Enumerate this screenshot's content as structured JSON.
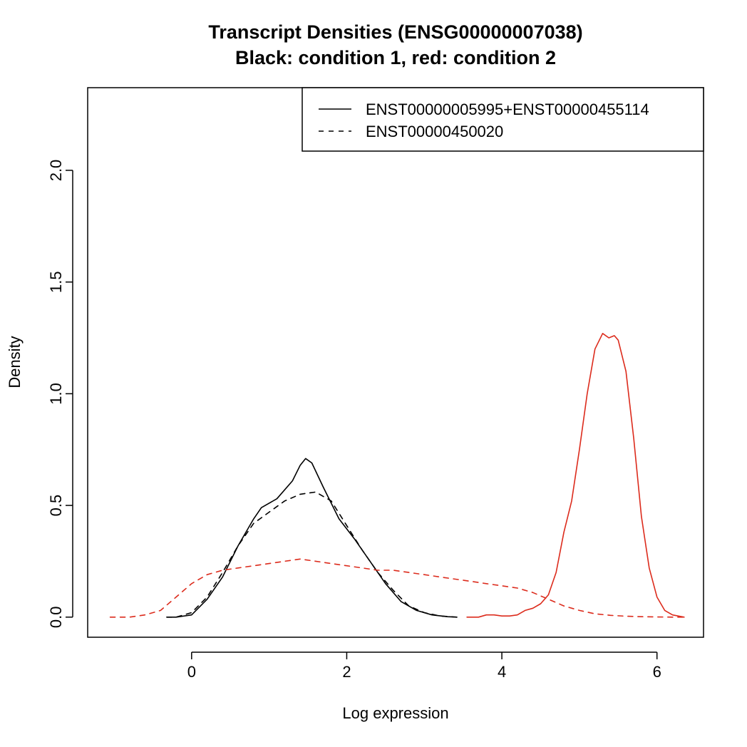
{
  "chart_data": {
    "type": "line",
    "title": "Transcript Densities (ENSG00000007038)",
    "subtitle": "Black: condition 1, red: condition 2",
    "xlabel": "Log expression",
    "ylabel": "Density",
    "xlim": [
      -1.34,
      6.6
    ],
    "ylim": [
      -0.09,
      2.37
    ],
    "x_ticks": [
      0,
      2,
      4,
      6
    ],
    "x_tick_labels": [
      "0",
      "2",
      "4",
      "6"
    ],
    "y_ticks": [
      0.0,
      0.5,
      1.0,
      1.5,
      2.0
    ],
    "y_tick_labels": [
      "0.0",
      "0.5",
      "1.0",
      "1.5",
      "2.0"
    ],
    "grid": false,
    "legend_position": "top-right",
    "legend": [
      {
        "label": "ENST00000005995+ENST00000455114",
        "line_style": "solid"
      },
      {
        "label": "ENST00000450020",
        "line_style": "dashed"
      }
    ],
    "series": [
      {
        "name": "ENST00000005995+ENST00000455114",
        "condition": "condition 1",
        "color": "#000000",
        "line_style": "solid",
        "x": [
          -0.32,
          -0.2,
          0.0,
          0.2,
          0.4,
          0.6,
          0.8,
          0.9,
          1.1,
          1.3,
          1.4,
          1.47,
          1.55,
          1.7,
          1.9,
          2.1,
          2.3,
          2.5,
          2.7,
          2.9,
          3.1,
          3.3,
          3.42
        ],
        "y": [
          0.0,
          0.0,
          0.01,
          0.08,
          0.18,
          0.32,
          0.44,
          0.49,
          0.53,
          0.61,
          0.68,
          0.71,
          0.69,
          0.58,
          0.44,
          0.35,
          0.25,
          0.15,
          0.07,
          0.03,
          0.01,
          0.002,
          0.0
        ]
      },
      {
        "name": "ENST00000450020",
        "condition": "condition 1",
        "color": "#000000",
        "line_style": "dashed",
        "x": [
          -0.32,
          -0.2,
          0.0,
          0.2,
          0.4,
          0.6,
          0.8,
          1.0,
          1.2,
          1.4,
          1.6,
          1.8,
          2.0,
          2.2,
          2.4,
          2.6,
          2.8,
          3.0,
          3.2,
          3.42
        ],
        "y": [
          0.0,
          0.0,
          0.02,
          0.09,
          0.2,
          0.32,
          0.42,
          0.47,
          0.52,
          0.55,
          0.56,
          0.52,
          0.41,
          0.3,
          0.2,
          0.12,
          0.05,
          0.02,
          0.005,
          0.0
        ]
      },
      {
        "name": "ENST00000005995+ENST00000455114",
        "condition": "condition 2",
        "color": "#dc2b1c",
        "line_style": "solid",
        "x": [
          3.55,
          3.7,
          3.8,
          3.9,
          4.0,
          4.1,
          4.2,
          4.3,
          4.4,
          4.5,
          4.6,
          4.7,
          4.8,
          4.9,
          5.0,
          5.1,
          5.2,
          5.3,
          5.38,
          5.45,
          5.5,
          5.6,
          5.7,
          5.8,
          5.9,
          6.0,
          6.1,
          6.2,
          6.35
        ],
        "y": [
          0.0,
          0.0,
          0.01,
          0.01,
          0.005,
          0.005,
          0.01,
          0.03,
          0.04,
          0.06,
          0.1,
          0.2,
          0.38,
          0.52,
          0.75,
          1.0,
          1.2,
          1.27,
          1.25,
          1.26,
          1.24,
          1.1,
          0.8,
          0.45,
          0.22,
          0.09,
          0.03,
          0.01,
          0.0
        ]
      },
      {
        "name": "ENST00000450020",
        "condition": "condition 2",
        "color": "#dc2b1c",
        "line_style": "dashed",
        "x": [
          -1.05,
          -0.8,
          -0.6,
          -0.4,
          -0.2,
          0.0,
          0.2,
          0.4,
          0.6,
          0.8,
          1.0,
          1.2,
          1.4,
          1.6,
          1.8,
          2.0,
          2.2,
          2.4,
          2.6,
          2.8,
          3.0,
          3.2,
          3.4,
          3.6,
          3.8,
          4.0,
          4.2,
          4.4,
          4.6,
          4.8,
          5.0,
          5.2,
          5.4,
          5.6,
          5.8,
          6.0,
          6.2,
          6.35
        ],
        "y": [
          0.0,
          0.0,
          0.01,
          0.03,
          0.09,
          0.15,
          0.19,
          0.21,
          0.22,
          0.23,
          0.24,
          0.25,
          0.26,
          0.25,
          0.24,
          0.23,
          0.22,
          0.21,
          0.21,
          0.2,
          0.19,
          0.18,
          0.17,
          0.16,
          0.15,
          0.14,
          0.13,
          0.11,
          0.08,
          0.05,
          0.03,
          0.015,
          0.008,
          0.004,
          0.002,
          0.001,
          0.0,
          0.0
        ]
      }
    ]
  }
}
